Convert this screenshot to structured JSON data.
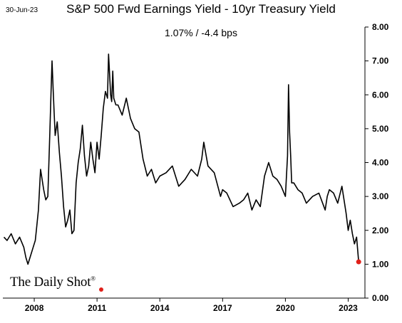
{
  "header": {
    "date": "30-Jun-23",
    "title": "S&P 500 Fwd Earnings Yield - 10yr Treasury Yield",
    "subtitle": "1.07%  /  -4.4 bps"
  },
  "branding": {
    "text": "The Daily Shot",
    "mark": "®"
  },
  "colors": {
    "line": "#000000",
    "last_point": "#e0201a",
    "axis": "#000000"
  },
  "chart_data": {
    "type": "line",
    "title": "S&P 500 Fwd Earnings Yield - 10yr Treasury Yield",
    "xlabel": "",
    "ylabel": "",
    "x_ticks": [
      "2008",
      "2011",
      "2014",
      "2017",
      "2020",
      "2023"
    ],
    "y_ticks": [
      "0.00",
      "1.00",
      "2.00",
      "3.00",
      "4.00",
      "5.00",
      "6.00",
      "7.00",
      "8.00"
    ],
    "xlim": [
      2006.5,
      2023.8
    ],
    "ylim": [
      0,
      8
    ],
    "grid": false,
    "series": [
      {
        "x": [
          2006.55,
          2006.7,
          2006.9,
          2007.1,
          2007.3,
          2007.5,
          2007.6,
          2007.7,
          2007.85,
          2008.0,
          2008.05,
          2008.1,
          2008.2,
          2008.3,
          2008.45,
          2008.55,
          2008.65,
          2008.7,
          2008.75,
          2008.8,
          2008.85,
          2008.9,
          2008.95,
          2009.0,
          2009.1,
          2009.2,
          2009.3,
          2009.4,
          2009.5,
          2009.6,
          2009.7,
          2009.8,
          2009.9,
          2010.0,
          2010.1,
          2010.2,
          2010.3,
          2010.4,
          2010.5,
          2010.6,
          2010.7,
          2010.8,
          2010.9,
          2011.0,
          2011.1,
          2011.2,
          2011.3,
          2011.4,
          2011.5,
          2011.55,
          2011.6,
          2011.65,
          2011.7,
          2011.75,
          2011.8,
          2011.9,
          2012.0,
          2012.2,
          2012.4,
          2012.6,
          2012.8,
          2013.0,
          2013.2,
          2013.4,
          2013.6,
          2013.8,
          2014.0,
          2014.3,
          2014.6,
          2014.9,
          2015.2,
          2015.5,
          2015.8,
          2016.0,
          2016.1,
          2016.3,
          2016.6,
          2016.9,
          2017.0,
          2017.2,
          2017.5,
          2017.8,
          2018.0,
          2018.2,
          2018.4,
          2018.6,
          2018.8,
          2019.0,
          2019.2,
          2019.4,
          2019.6,
          2019.8,
          2020.0,
          2020.1,
          2020.15,
          2020.2,
          2020.25,
          2020.3,
          2020.4,
          2020.6,
          2020.8,
          2021.0,
          2021.3,
          2021.6,
          2021.9,
          2022.0,
          2022.1,
          2022.3,
          2022.5,
          2022.7,
          2022.9,
          2023.0,
          2023.1,
          2023.2,
          2023.3,
          2023.4,
          2023.5
        ],
        "values": [
          1.8,
          1.7,
          1.9,
          1.6,
          1.8,
          1.5,
          1.2,
          1.0,
          1.3,
          1.6,
          1.7,
          2.0,
          2.6,
          3.8,
          3.2,
          2.9,
          3.0,
          4.0,
          5.0,
          6.0,
          7.0,
          6.2,
          5.5,
          4.8,
          5.2,
          4.3,
          3.6,
          2.7,
          2.1,
          2.3,
          2.6,
          1.9,
          2.0,
          3.4,
          4.0,
          4.4,
          5.1,
          4.2,
          3.6,
          3.9,
          4.6,
          4.1,
          3.7,
          4.6,
          4.1,
          4.8,
          5.6,
          6.1,
          5.9,
          7.2,
          6.6,
          6.0,
          5.8,
          6.7,
          5.9,
          5.7,
          5.7,
          5.4,
          5.9,
          5.3,
          5.0,
          4.9,
          4.1,
          3.6,
          3.8,
          3.4,
          3.6,
          3.7,
          3.9,
          3.3,
          3.5,
          3.8,
          3.6,
          4.1,
          4.6,
          3.9,
          3.7,
          3.0,
          3.2,
          3.1,
          2.7,
          2.8,
          2.9,
          3.1,
          2.6,
          2.9,
          2.7,
          3.6,
          4.0,
          3.6,
          3.5,
          3.3,
          3.0,
          4.2,
          6.3,
          4.9,
          4.2,
          3.4,
          3.4,
          3.2,
          3.1,
          2.8,
          3.0,
          3.1,
          2.6,
          3.0,
          3.2,
          3.1,
          2.8,
          3.3,
          2.5,
          2.0,
          2.3,
          1.9,
          1.6,
          1.8,
          1.07
        ]
      }
    ],
    "last_value": 1.07
  }
}
